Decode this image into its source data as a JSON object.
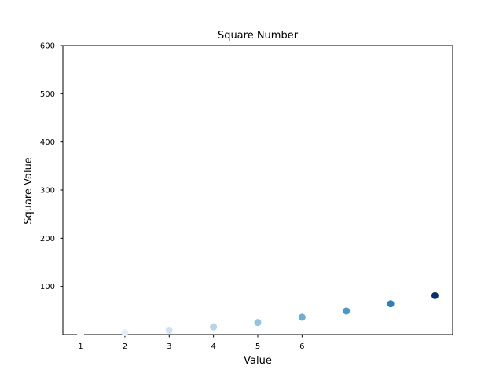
{
  "chart_data": {
    "type": "scatter",
    "title": "Square Number",
    "xlabel": "Value",
    "ylabel": "Square Value",
    "xlim": [
      0.6,
      9.4
    ],
    "ylim": [
      0,
      600
    ],
    "x_ticks": [
      1,
      2,
      3,
      4,
      5,
      6
    ],
    "y_ticks": [
      100,
      200,
      300,
      400,
      500,
      600
    ],
    "grid": false,
    "colormap": "Blues",
    "series": [
      {
        "x": [
          1,
          2,
          3,
          4,
          5,
          6,
          7,
          8,
          9
        ],
        "y": [
          1,
          4,
          9,
          16,
          25,
          36,
          49,
          64,
          81
        ],
        "colors": [
          "#f7fbff",
          "#e3eef9",
          "#cfe1f2",
          "#b5d4e9",
          "#93c3df",
          "#6daed5",
          "#4b97c9",
          "#2f7ebc",
          "#08306b"
        ]
      }
    ]
  }
}
